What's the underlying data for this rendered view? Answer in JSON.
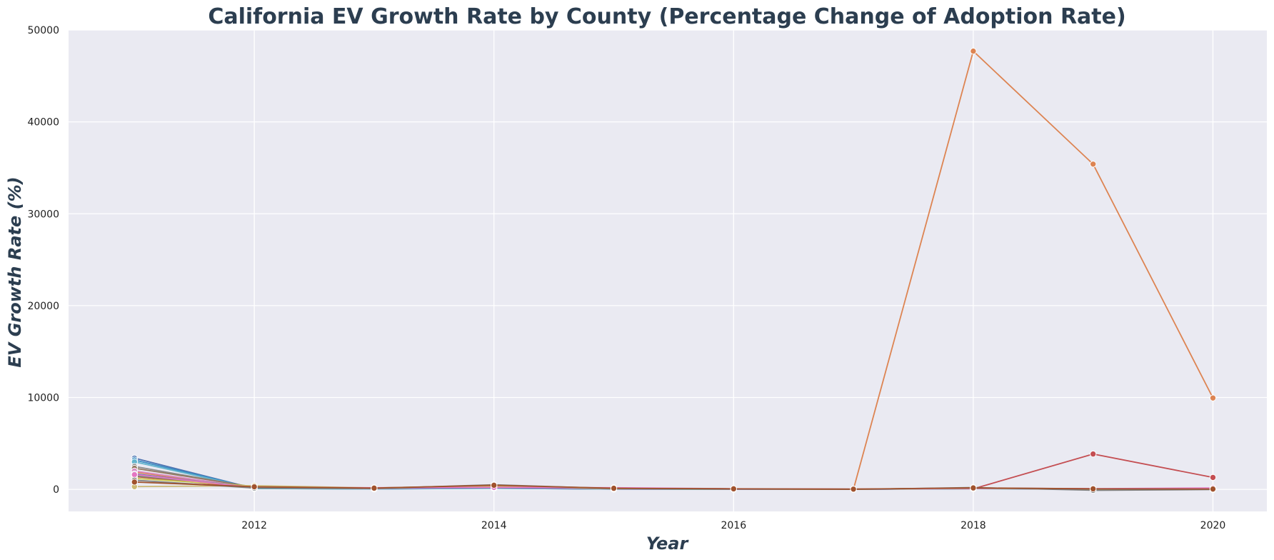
{
  "chart_data": {
    "type": "line",
    "title": "California EV Growth Rate by County (Percentage Change of Adoption Rate)",
    "xlabel": "Year",
    "ylabel": "EV Growth Rate (%)",
    "xlim": [
      2010.45,
      2020.45
    ],
    "ylim": [
      -2400,
      50000
    ],
    "x_ticks": [
      2012,
      2014,
      2016,
      2018,
      2020
    ],
    "y_ticks": [
      0,
      10000,
      20000,
      30000,
      40000,
      50000
    ],
    "grid": true,
    "legend": "none",
    "background": "#eaeaf2",
    "x": [
      2011,
      2012,
      2013,
      2014,
      2015,
      2016,
      2017,
      2018,
      2019,
      2020
    ],
    "series": [
      {
        "color": "#dd8452",
        "values": [
          1900,
          120,
          60,
          150,
          40,
          20,
          10,
          47700,
          35400,
          9950
        ]
      },
      {
        "color": "#c44e52",
        "values": [
          1400,
          150,
          90,
          200,
          60,
          30,
          20,
          60,
          3850,
          1300
        ]
      },
      {
        "color": "#4c72b0",
        "values": [
          3400,
          100,
          50,
          120,
          30,
          15,
          10,
          80,
          40,
          20
        ]
      },
      {
        "color": "#3b8ec4",
        "values": [
          3200,
          110,
          60,
          140,
          40,
          20,
          10,
          90,
          50,
          30
        ]
      },
      {
        "color": "#64b5cd",
        "values": [
          3000,
          90,
          40,
          110,
          30,
          10,
          5,
          70,
          30,
          15
        ]
      },
      {
        "color": "#8c8c8c",
        "values": [
          2500,
          200,
          100,
          300,
          80,
          40,
          20,
          150,
          60,
          40
        ]
      },
      {
        "color": "#937860",
        "values": [
          2300,
          250,
          120,
          350,
          90,
          50,
          25,
          120,
          50,
          30
        ]
      },
      {
        "color": "#da8bc3",
        "values": [
          2000,
          180,
          90,
          250,
          70,
          30,
          15,
          100,
          40,
          25
        ]
      },
      {
        "color": "#8172b3",
        "values": [
          1700,
          160,
          110,
          180,
          60,
          25,
          12,
          90,
          35,
          20
        ]
      },
      {
        "color": "#55a868",
        "values": [
          1500,
          300,
          150,
          400,
          100,
          50,
          20,
          130,
          45,
          30
        ]
      },
      {
        "color": "#cccc55",
        "values": [
          1200,
          350,
          130,
          320,
          90,
          45,
          18,
          110,
          40,
          25
        ]
      },
      {
        "color": "#ccb974",
        "values": [
          300,
          400,
          160,
          380,
          110,
          55,
          22,
          140,
          50,
          35
        ]
      },
      {
        "color": "#e377c2",
        "values": [
          1600,
          200,
          180,
          220,
          180,
          70,
          30,
          120,
          80,
          150
        ]
      },
      {
        "color": "#7f7f7f",
        "values": [
          1000,
          150,
          100,
          500,
          100,
          60,
          0,
          200,
          -100,
          -20
        ]
      },
      {
        "color": "#a0522d",
        "values": [
          800,
          280,
          140,
          450,
          120,
          60,
          25,
          160,
          60,
          40
        ]
      }
    ]
  }
}
